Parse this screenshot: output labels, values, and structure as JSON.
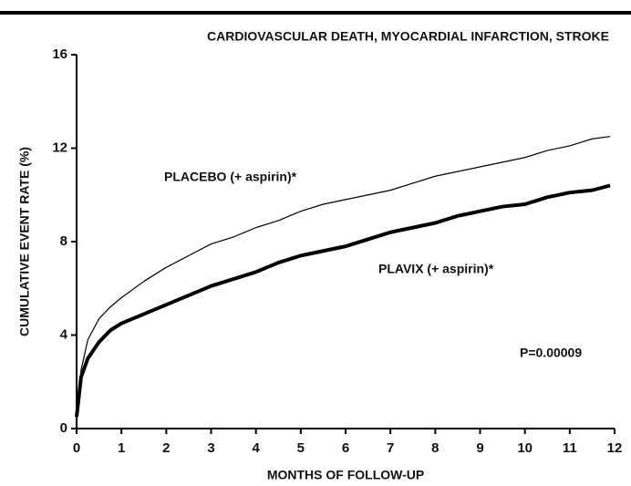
{
  "chart_data": {
    "type": "line",
    "title": "CARDIOVASCULAR DEATH, MYOCARDIAL INFARCTION, STROKE",
    "x_label": "MONTHS OF FOLLOW-UP",
    "y_label": "CUMULATIVE EVENT RATE (%)",
    "x": [
      0,
      0.1,
      0.25,
      0.5,
      0.75,
      1,
      1.5,
      2,
      2.5,
      3,
      3.5,
      4,
      4.5,
      5,
      5.5,
      6,
      6.5,
      7,
      7.5,
      8,
      8.5,
      9,
      9.5,
      10,
      10.5,
      11,
      11.5,
      11.9
    ],
    "series": [
      {
        "name": "PLACEBO (+ aspirin)*",
        "color": "#000000",
        "width": 1.2,
        "values": [
          0.5,
          2.5,
          3.8,
          4.7,
          5.2,
          5.6,
          6.3,
          6.9,
          7.4,
          7.9,
          8.2,
          8.6,
          8.9,
          9.3,
          9.6,
          9.8,
          10.0,
          10.2,
          10.5,
          10.8,
          11.0,
          11.2,
          11.4,
          11.6,
          11.9,
          12.1,
          12.4,
          12.5
        ]
      },
      {
        "name": "PLAVIX (+ aspirin)*",
        "color": "#000000",
        "width": 4,
        "values": [
          0.5,
          2.2,
          3.0,
          3.7,
          4.2,
          4.5,
          4.9,
          5.3,
          5.7,
          6.1,
          6.4,
          6.7,
          7.1,
          7.4,
          7.6,
          7.8,
          8.1,
          8.4,
          8.6,
          8.8,
          9.1,
          9.3,
          9.5,
          9.6,
          9.9,
          10.1,
          10.2,
          10.4
        ]
      }
    ],
    "annotation": "P=0.00009",
    "xlim": [
      0,
      12
    ],
    "xticks": [
      0,
      1,
      2,
      3,
      4,
      5,
      6,
      7,
      8,
      9,
      10,
      11,
      12
    ],
    "ylim": [
      0,
      16
    ],
    "yticks": [
      0,
      4,
      8,
      12,
      16
    ]
  }
}
